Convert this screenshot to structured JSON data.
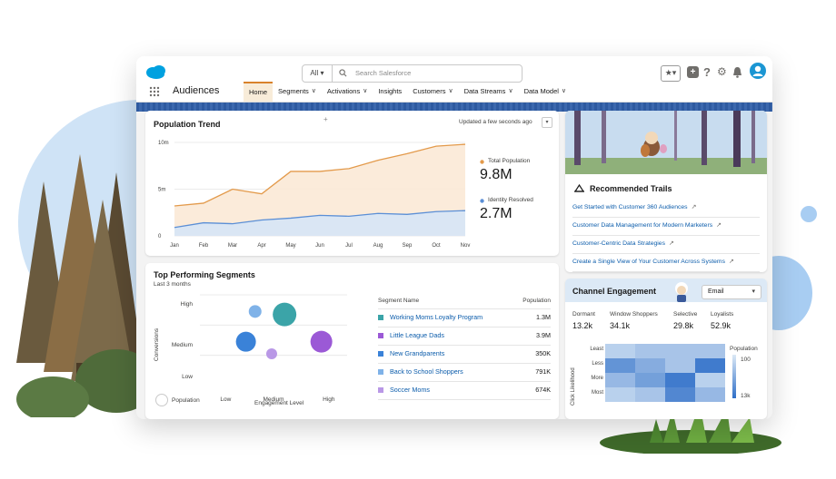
{
  "app": {
    "name": "Audiences",
    "search_scope": "All",
    "search_placeholder": "Search Salesforce",
    "nav": [
      {
        "label": "Home",
        "active": true,
        "dropdown": false
      },
      {
        "label": "Segments",
        "active": false,
        "dropdown": true
      },
      {
        "label": "Activations",
        "active": false,
        "dropdown": true
      },
      {
        "label": "Insights",
        "active": false,
        "dropdown": false
      },
      {
        "label": "Customers",
        "active": false,
        "dropdown": true
      },
      {
        "label": "Data Streams",
        "active": false,
        "dropdown": true
      },
      {
        "label": "Data Model",
        "active": false,
        "dropdown": true
      }
    ],
    "utility_icons": [
      "favorites-icon",
      "add-icon",
      "help-icon",
      "setup-gear-icon",
      "notifications-bell-icon",
      "user-avatar-icon"
    ],
    "colors": {
      "brand": "#00a1e0",
      "accent": "#d9822b",
      "link": "#0b5cab"
    }
  },
  "population_trend": {
    "title": "Population Trend",
    "updated": "Updated a few seconds ago",
    "total_label": "Total Population",
    "total_value": "9.8M",
    "identity_label": "Identity Resolved",
    "identity_value": "2.7M"
  },
  "segments": {
    "title": "Top Performing Segments",
    "subtitle": "Last 3 months",
    "y_axis_label": "Conversions",
    "x_axis_label": "Engagement Level",
    "size_legend": "Population",
    "y_ticks": [
      "High",
      "Medium",
      "Low"
    ],
    "x_ticks": [
      "Low",
      "Medium",
      "High"
    ],
    "col_name": "Segment Name",
    "col_population": "Population",
    "rows": [
      {
        "name": "Working Moms Loyalty Program",
        "population": "1.3M",
        "color": "#3ba4a8"
      },
      {
        "name": "Little League Dads",
        "population": "3.9M",
        "color": "#9b59d6"
      },
      {
        "name": "New Grandparents",
        "population": "350K",
        "color": "#3a82d8"
      },
      {
        "name": "Back to School Shoppers",
        "population": "791K",
        "color": "#7fb2e8"
      },
      {
        "name": "Soccer Moms",
        "population": "674K",
        "color": "#b998e6"
      }
    ]
  },
  "trails": {
    "title": "Recommended Trails",
    "items": [
      "Get Started with Customer 360 Audiences",
      "Customer Data Management for Modern Marketers",
      "Customer-Centric Data Strategies",
      "Create a Single View of Your Customer Across Systems"
    ]
  },
  "channel": {
    "title": "Channel Engagement",
    "select": "Email",
    "stats": [
      {
        "label": "Dormant",
        "value": "13.2k"
      },
      {
        "label": "Window Shoppers",
        "value": "34.1k"
      },
      {
        "label": "Selective",
        "value": "29.8k"
      },
      {
        "label": "Loyalists",
        "value": "52.9k"
      }
    ],
    "y_axis_label": "Click Likelihood",
    "y_ticks": [
      "Least",
      "Less",
      "More",
      "Most"
    ],
    "legend_title": "Population",
    "legend_max": "100",
    "legend_min": "13k"
  },
  "chart_data": [
    {
      "type": "area",
      "title": "Population Trend",
      "categories": [
        "Jan",
        "Feb",
        "Mar",
        "Apr",
        "May",
        "Jun",
        "Jul",
        "Aug",
        "Sep",
        "Oct",
        "Nov"
      ],
      "y_ticks": [
        "0",
        "5m",
        "10m"
      ],
      "ylim": [
        0,
        10
      ],
      "series": [
        {
          "name": "Total Population",
          "color": "#e39a4b",
          "values": [
            3.2,
            3.5,
            5.0,
            4.5,
            6.9,
            6.9,
            7.2,
            8.1,
            8.8,
            9.6,
            9.8
          ]
        },
        {
          "name": "Identity Resolved",
          "color": "#5b8fd6",
          "values": [
            0.9,
            1.4,
            1.3,
            1.7,
            1.9,
            2.2,
            2.1,
            2.4,
            2.3,
            2.6,
            2.7
          ]
        }
      ]
    },
    {
      "type": "scatter",
      "title": "Top Performing Segments",
      "xlabel": "Engagement Level",
      "ylabel": "Conversions",
      "x_ticks": [
        "Low",
        "Medium",
        "High"
      ],
      "y_ticks": [
        "Low",
        "Medium",
        "High"
      ],
      "xlim": [
        0,
        4
      ],
      "ylim": [
        0,
        3
      ],
      "points": [
        {
          "x": 1.5,
          "y": 2.6,
          "r": 7,
          "color": "#7fb2e8"
        },
        {
          "x": 2.3,
          "y": 2.5,
          "r": 13,
          "color": "#3ba4a8"
        },
        {
          "x": 1.25,
          "y": 1.6,
          "r": 11,
          "color": "#3a82d8"
        },
        {
          "x": 3.3,
          "y": 1.6,
          "r": 12,
          "color": "#9b59d6"
        },
        {
          "x": 1.95,
          "y": 1.2,
          "r": 6,
          "color": "#b998e6"
        }
      ]
    },
    {
      "type": "heatmap",
      "title": "Channel Engagement",
      "x_categories": [
        "Dormant",
        "Window Shoppers",
        "Selective",
        "Loyalists"
      ],
      "y_categories": [
        "Least",
        "Less",
        "More",
        "Most"
      ],
      "values": [
        [
          0.2,
          0.3,
          0.3,
          0.3
        ],
        [
          0.7,
          0.5,
          0.3,
          0.9
        ],
        [
          0.4,
          0.6,
          0.9,
          0.2
        ],
        [
          0.2,
          0.3,
          0.8,
          0.4
        ]
      ]
    }
  ]
}
